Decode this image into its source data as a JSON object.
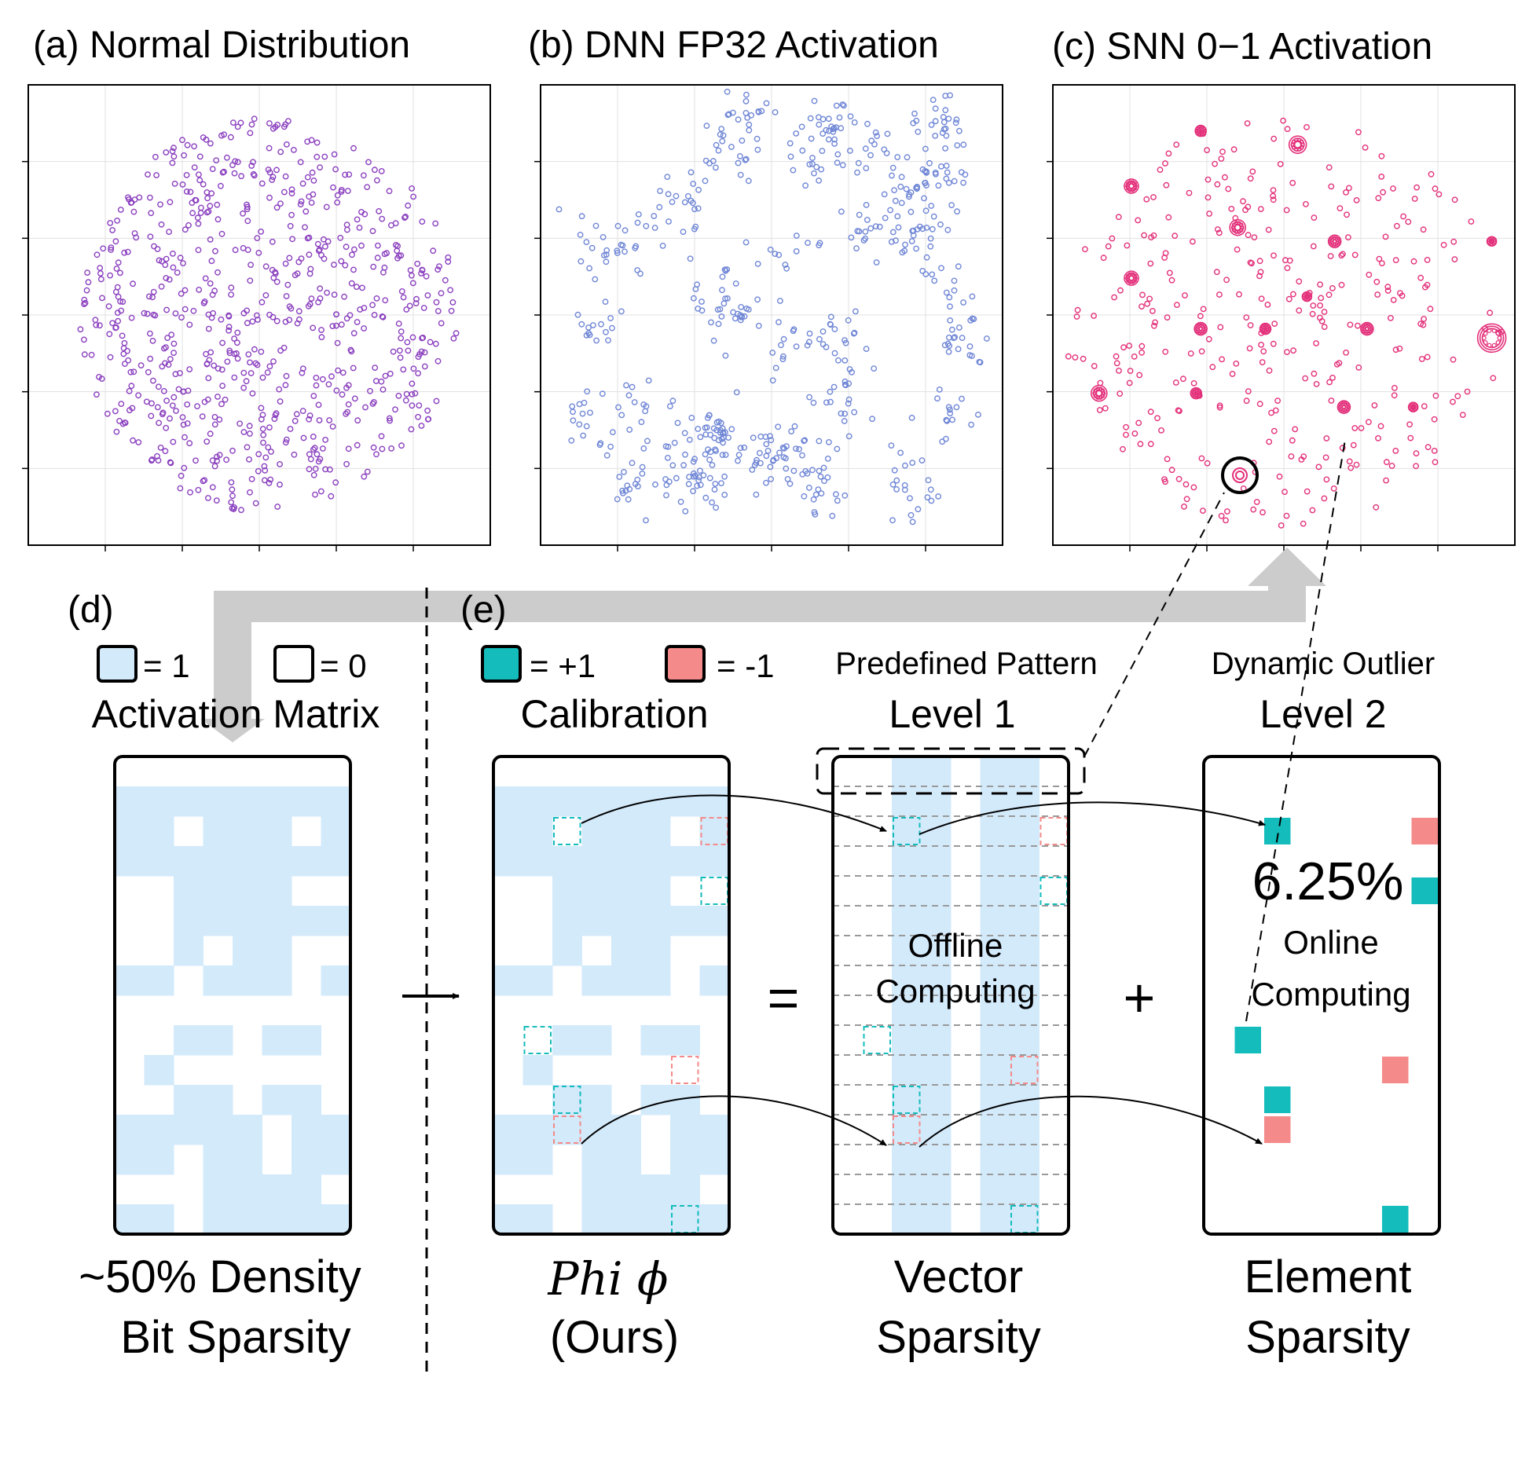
{
  "panels": {
    "a": {
      "title": "(a) Normal Distribution",
      "color": "#8a3fbf"
    },
    "b": {
      "title": "(b) DNN FP32 Activation",
      "color": "#6f86d6"
    },
    "c": {
      "title": "(c) SNN 0−1 Activation",
      "color": "#e3307a"
    }
  },
  "labels": {
    "d": "(d)",
    "e": "(e)",
    "legend_one": "= 1",
    "legend_zero": "= 0",
    "legend_plus": "= +1",
    "legend_minus": "= -1",
    "activation_matrix": "Activation Matrix",
    "calibration": "Calibration",
    "predefined_pattern": "Predefined Pattern",
    "level1": "Level 1",
    "dynamic_outlier": "Dynamic Outlier",
    "level2": "Level 2",
    "offline_line1": "Offline",
    "offline_line2": "Computing",
    "online_line1": "Online",
    "online_line2": "Computing",
    "percent": "6.25%",
    "equals": "=",
    "plus": "+",
    "caption_d_line1": "~50% Density",
    "caption_d_line2": "Bit Sparsity",
    "caption_phi_line1": "Phi ϕ",
    "caption_phi_line2": "(Ours)",
    "caption_vec_line1": "Vector",
    "caption_vec_line2": "Sparsity",
    "caption_el_line1": "Element",
    "caption_el_line2": "Sparsity"
  },
  "colors": {
    "one": "#d3eafb",
    "plus": "#14bcbc",
    "minus": "#f48a89",
    "arrow": "#cccccc"
  },
  "matrix": {
    "cols": 8,
    "rows": [
      [
        0,
        0,
        0,
        0,
        0,
        0,
        0,
        0
      ],
      [
        1,
        1,
        1,
        1,
        1,
        1,
        1,
        1
      ],
      [
        1,
        1,
        0,
        1,
        1,
        1,
        0,
        1
      ],
      [
        1,
        1,
        1,
        1,
        1,
        1,
        1,
        1
      ],
      [
        0,
        0,
        1,
        1,
        1,
        1,
        0,
        0
      ],
      [
        0,
        0,
        1,
        1,
        1,
        1,
        1,
        1
      ],
      [
        0,
        0,
        1,
        0,
        1,
        1,
        0,
        0
      ],
      [
        1,
        1,
        0,
        1,
        1,
        1,
        0,
        1
      ],
      [
        0,
        0,
        0,
        0,
        0,
        0,
        0,
        0
      ],
      [
        0,
        0,
        1,
        1,
        0,
        1,
        1,
        0
      ],
      [
        0,
        1,
        0,
        0,
        0,
        0,
        0,
        0
      ],
      [
        0,
        0,
        1,
        1,
        0,
        1,
        1,
        0
      ],
      [
        1,
        1,
        1,
        1,
        1,
        0,
        1,
        1
      ],
      [
        1,
        1,
        0,
        1,
        1,
        0,
        1,
        1
      ],
      [
        0,
        0,
        0,
        1,
        1,
        1,
        1,
        0
      ],
      [
        1,
        1,
        0,
        1,
        1,
        1,
        1,
        1
      ]
    ],
    "pattern_cols": [
      0,
      0,
      1,
      1,
      0,
      1,
      1,
      0
    ]
  },
  "calibration_marks": [
    {
      "row": 2,
      "col": 2,
      "type": "plus"
    },
    {
      "row": 2,
      "col": 7,
      "type": "minus"
    },
    {
      "row": 4,
      "col": 7,
      "type": "plus"
    },
    {
      "row": 9,
      "col": 1,
      "type": "plus"
    },
    {
      "row": 10,
      "col": 6,
      "type": "minus"
    },
    {
      "row": 11,
      "col": 2,
      "type": "plus"
    },
    {
      "row": 12,
      "col": 2,
      "type": "minus"
    },
    {
      "row": 15,
      "col": 6,
      "type": "plus"
    }
  ],
  "outlier_marks": [
    {
      "row": 2,
      "col": 2,
      "type": "plus"
    },
    {
      "row": 2,
      "col": 7,
      "type": "minus"
    },
    {
      "row": 4,
      "col": 7,
      "type": "plus"
    },
    {
      "row": 9,
      "col": 1,
      "type": "plus"
    },
    {
      "row": 10,
      "col": 6,
      "type": "minus"
    },
    {
      "row": 11,
      "col": 2,
      "type": "plus"
    },
    {
      "row": 12,
      "col": 2,
      "type": "minus"
    },
    {
      "row": 15,
      "col": 6,
      "type": "plus"
    }
  ]
}
